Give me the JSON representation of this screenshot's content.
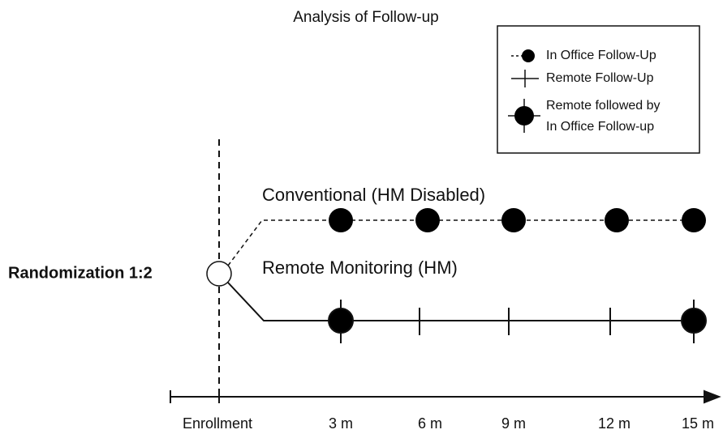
{
  "title": "Analysis of Follow-up",
  "legend": {
    "in_office": "In Office Follow-Up",
    "remote": "Remote Follow-Up",
    "combined": [
      "Remote followed by",
      "In Office Follow-up"
    ]
  },
  "randomization": "Randomization 1:2",
  "arms": {
    "conventional": "Conventional (HM Disabled)",
    "remote": "Remote Monitoring (HM)"
  },
  "axis": {
    "labels": [
      "Enrollment",
      "3 m",
      "6 m",
      "9 m",
      "12 m",
      "15 m"
    ]
  }
}
